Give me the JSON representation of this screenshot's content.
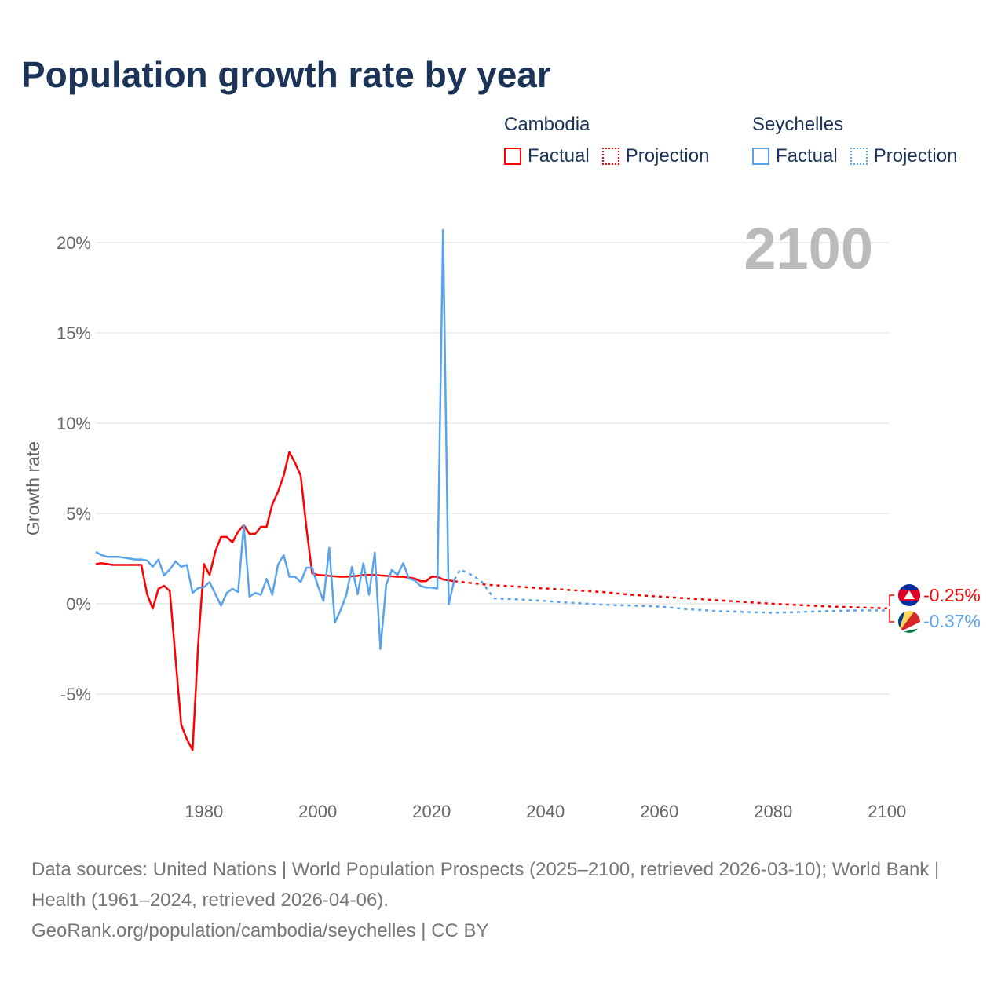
{
  "title": "Population growth rate by year",
  "legend": {
    "groups": [
      {
        "name": "Cambodia",
        "factual": "Factual",
        "projection": "Projection",
        "color": "#ff0000"
      },
      {
        "name": "Seychelles",
        "factual": "Factual",
        "projection": "Projection",
        "color": "#5aa3ea"
      }
    ]
  },
  "year_label": "2100",
  "end_labels": {
    "cambodia": "-0.25%",
    "seychelles": "-0.37%"
  },
  "footer": {
    "sources": "Data sources: United Nations | World Population Prospects (2025–2100, retrieved 2026-03-10); World Bank | Health (1961–2024, retrieved 2026-04-06).",
    "url": "GeoRank.org/population/cambodia/seychelles | CC BY"
  },
  "chart_data": {
    "type": "line",
    "title": "Population growth rate by year",
    "xlabel": "",
    "ylabel": "Growth rate",
    "xlim": [
      1961,
      2100
    ],
    "ylim": [
      -10,
      21
    ],
    "x_ticks": [
      1980,
      2000,
      2020,
      2040,
      2060,
      2080,
      2100
    ],
    "x_tick_labels": [
      "1980",
      "2000",
      "2020",
      "2040",
      "2060",
      "2080",
      "2100"
    ],
    "y_ticks": [
      -5,
      0,
      5,
      10,
      15,
      20
    ],
    "y_tick_labels": [
      "-5%",
      "0%",
      "5%",
      "10%",
      "15%",
      "20%"
    ],
    "grid": true,
    "legend_position": "top-right",
    "series": [
      {
        "name": "Cambodia",
        "kind": "factual",
        "color": "#ff0000",
        "x": [
          1961,
          1962,
          1963,
          1964,
          1965,
          1966,
          1967,
          1968,
          1969,
          1970,
          1971,
          1972,
          1973,
          1974,
          1975,
          1976,
          1977,
          1978,
          1979,
          1980,
          1981,
          1982,
          1983,
          1984,
          1985,
          1986,
          1987,
          1988,
          1989,
          1990,
          1991,
          1992,
          1993,
          1994,
          1995,
          1996,
          1997,
          1998,
          1999,
          2000,
          2001,
          2002,
          2003,
          2004,
          2005,
          2006,
          2007,
          2008,
          2009,
          2010,
          2011,
          2012,
          2013,
          2014,
          2015,
          2016,
          2017,
          2018,
          2019,
          2020,
          2021,
          2022,
          2023,
          2024
        ],
        "values": [
          2.2,
          2.25,
          2.2,
          2.15,
          2.15,
          2.15,
          2.15,
          2.15,
          2.15,
          0.55,
          -0.27,
          0.83,
          1.0,
          0.7,
          -3.0,
          -6.7,
          -7.5,
          -8.1,
          -2.2,
          2.2,
          1.6,
          2.9,
          3.7,
          3.7,
          3.4,
          4.0,
          4.35,
          3.87,
          3.87,
          4.26,
          4.26,
          5.5,
          6.2,
          7.1,
          8.4,
          7.8,
          7.1,
          4.2,
          1.7,
          1.6,
          1.58,
          1.55,
          1.52,
          1.5,
          1.5,
          1.52,
          1.55,
          1.6,
          1.6,
          1.6,
          1.57,
          1.55,
          1.52,
          1.5,
          1.5,
          1.45,
          1.4,
          1.25,
          1.25,
          1.5,
          1.5,
          1.35,
          1.3,
          1.25
        ]
      },
      {
        "name": "Cambodia",
        "kind": "projection",
        "color": "#ff0000",
        "x": [
          2024,
          2030,
          2035,
          2040,
          2045,
          2050,
          2055,
          2060,
          2065,
          2070,
          2075,
          2080,
          2085,
          2090,
          2095,
          2100
        ],
        "values": [
          1.25,
          1.05,
          0.95,
          0.85,
          0.75,
          0.65,
          0.5,
          0.4,
          0.3,
          0.2,
          0.1,
          0.0,
          -0.08,
          -0.15,
          -0.2,
          -0.25
        ]
      },
      {
        "name": "Seychelles",
        "kind": "factual",
        "color": "#5aa3ea",
        "x": [
          1961,
          1962,
          1963,
          1964,
          1965,
          1966,
          1967,
          1968,
          1969,
          1970,
          1971,
          1972,
          1973,
          1974,
          1975,
          1976,
          1977,
          1978,
          1979,
          1980,
          1981,
          1982,
          1983,
          1984,
          1985,
          1986,
          1987,
          1988,
          1989,
          1990,
          1991,
          1992,
          1993,
          1994,
          1995,
          1996,
          1997,
          1998,
          1999,
          2000,
          2001,
          2002,
          2003,
          2004,
          2005,
          2006,
          2007,
          2008,
          2009,
          2010,
          2011,
          2012,
          2013,
          2014,
          2015,
          2016,
          2017,
          2018,
          2019,
          2020,
          2021,
          2022,
          2023,
          2024
        ],
        "values": [
          2.87,
          2.7,
          2.6,
          2.6,
          2.6,
          2.55,
          2.5,
          2.45,
          2.45,
          2.4,
          2.05,
          2.45,
          1.57,
          1.9,
          2.35,
          2.05,
          2.15,
          0.6,
          0.87,
          0.93,
          1.2,
          0.55,
          -0.1,
          0.6,
          0.83,
          0.65,
          4.35,
          0.4,
          0.6,
          0.5,
          1.38,
          0.5,
          2.15,
          2.7,
          1.5,
          1.5,
          1.2,
          2.0,
          2.0,
          1.0,
          0.15,
          3.1,
          -1.05,
          -0.35,
          0.48,
          2.05,
          0.53,
          2.25,
          0.5,
          2.83,
          -2.5,
          1.04,
          1.87,
          1.6,
          2.25,
          1.4,
          1.3,
          1.0,
          0.9,
          0.9,
          0.85,
          20.7,
          -0.03,
          1.35
        ]
      },
      {
        "name": "Seychelles",
        "kind": "projection",
        "color": "#5aa3ea",
        "x": [
          2024,
          2025,
          2026,
          2027,
          2028,
          2029,
          2030,
          2031,
          2035,
          2040,
          2045,
          2050,
          2055,
          2060,
          2065,
          2070,
          2075,
          2080,
          2085,
          2090,
          2095,
          2100
        ],
        "values": [
          1.35,
          1.9,
          1.75,
          1.6,
          1.4,
          1.15,
          0.7,
          0.3,
          0.25,
          0.15,
          0.05,
          -0.05,
          -0.1,
          -0.15,
          -0.3,
          -0.4,
          -0.45,
          -0.5,
          -0.45,
          -0.4,
          -0.37,
          -0.37
        ]
      }
    ]
  }
}
